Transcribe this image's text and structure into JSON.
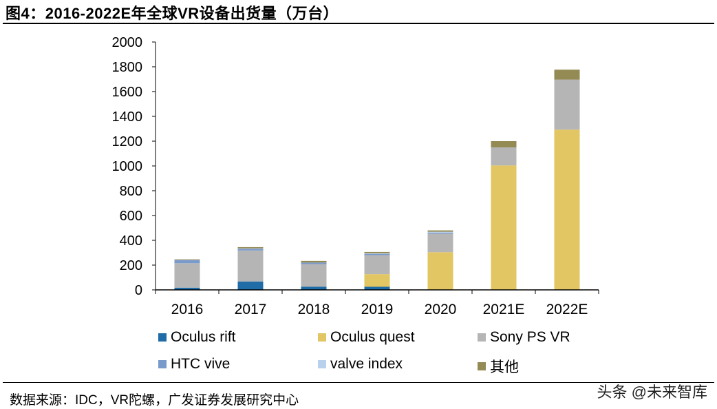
{
  "title": "图4：2016-2022E年全球VR设备出货量（万台）",
  "source": "数据来源：IDC，VR陀螺，广发证券发展研究中心",
  "watermark": "头条 @未来智库",
  "chart_data": {
    "type": "bar",
    "stacked": true,
    "title": "",
    "xlabel": "",
    "ylabel": "",
    "ylim": [
      0,
      2000
    ],
    "yticks": [
      0,
      200,
      400,
      600,
      800,
      1000,
      1200,
      1400,
      1600,
      1800,
      2000
    ],
    "grid": false,
    "legend_placement": "bottom",
    "categories": [
      "2016",
      "2017",
      "2018",
      "2019",
      "2020",
      "2021E",
      "2022E"
    ],
    "series": [
      {
        "name": "Oculus rift",
        "color": "#1f6ca6",
        "values": [
          18,
          68,
          25,
          25,
          2,
          0,
          0
        ]
      },
      {
        "name": "Oculus quest",
        "color": "#e2c663",
        "values": [
          0,
          0,
          0,
          102,
          302,
          1004,
          1293
        ]
      },
      {
        "name": "Sony PS VR",
        "color": "#b5b5b5",
        "values": [
          197,
          250,
          183,
          153,
          150,
          146,
          404
        ]
      },
      {
        "name": "HTC vive",
        "color": "#7a9acb",
        "values": [
          25,
          14,
          13,
          10,
          8,
          0,
          0
        ]
      },
      {
        "name": "valve index",
        "color": "#b9d1ea",
        "values": [
          2,
          3,
          0,
          5,
          7,
          0,
          0
        ]
      },
      {
        "name": "其他",
        "color": "#948a54",
        "values": [
          5,
          10,
          13,
          11,
          11,
          50,
          80
        ]
      }
    ]
  }
}
